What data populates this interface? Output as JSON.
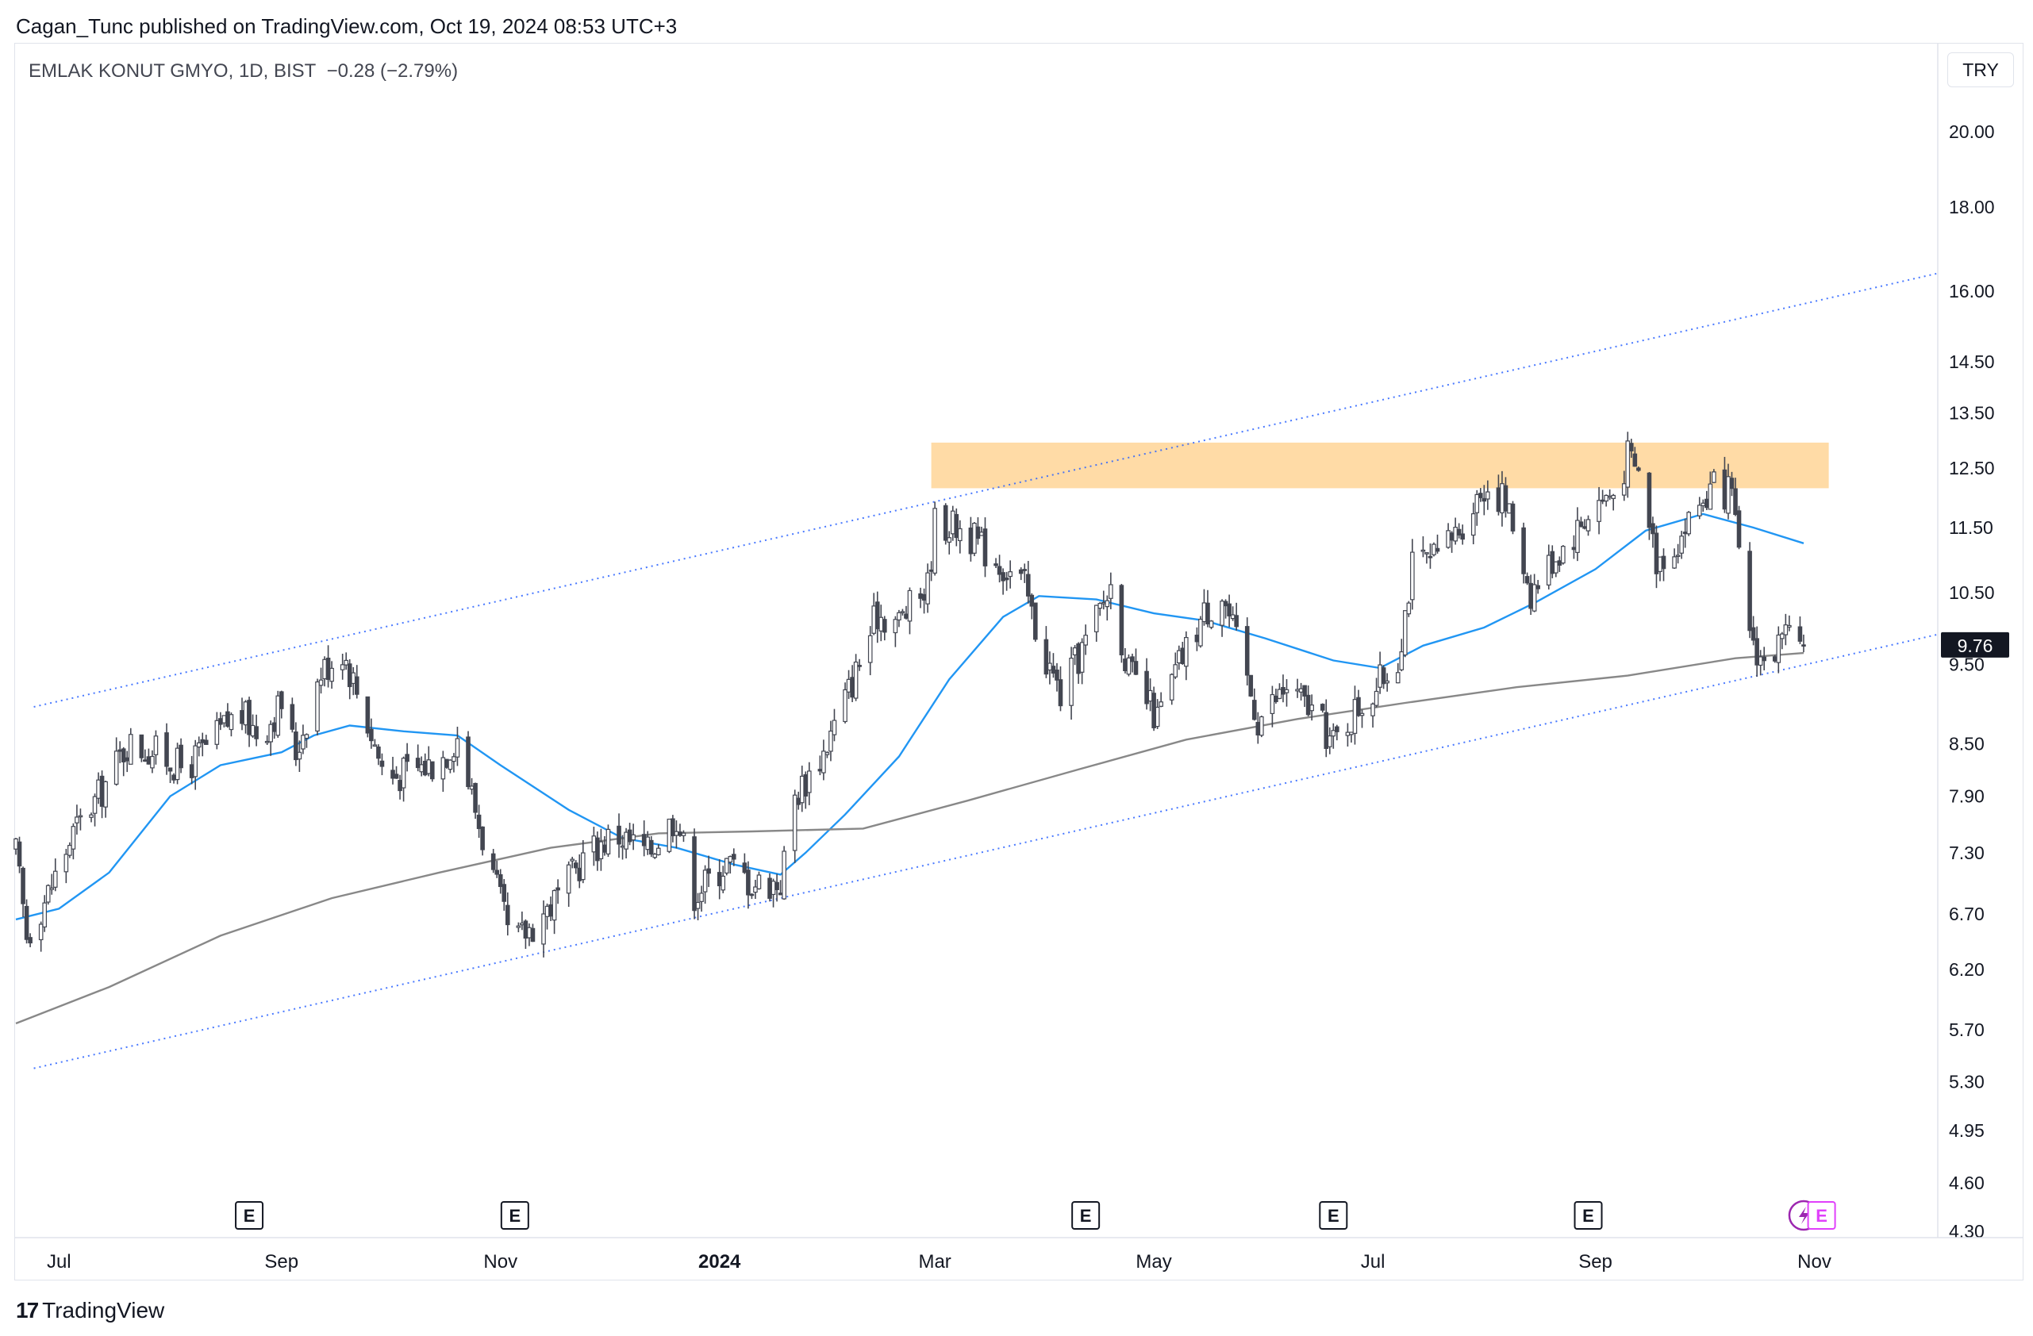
{
  "header": {
    "published": "Cagan_Tunc published on TradingView.com, Oct 19, 2024 08:53 UTC+3"
  },
  "symbol": {
    "title": "EMLAK KONUT GMYO, 1D, BIST",
    "change": "−0.28 (−2.79%)"
  },
  "currency": "TRY",
  "footer": {
    "brand": "TradingView",
    "mark": "17"
  },
  "colors": {
    "up": "#ffffff",
    "down": "#434651",
    "candle_outline": "#434651",
    "ma_fast": "#2196f3",
    "ma_slow": "#888888",
    "channel": "#2962ff",
    "zone": "#ffcc80",
    "last_price_bg": "#131722",
    "event_e": "#131722",
    "event_e_upcoming": "#e040fb",
    "dividend": "#9c27b0"
  },
  "chart_data": {
    "type": "candlestick",
    "scale": "log",
    "ylim": [
      4.3,
      22.5
    ],
    "y_ticks": [
      "20.00",
      "18.00",
      "16.00",
      "14.50",
      "13.50",
      "12.50",
      "11.50",
      "10.50",
      "9.50",
      "8.50",
      "7.90",
      "7.30",
      "6.70",
      "6.20",
      "5.70",
      "5.30",
      "4.95",
      "4.60",
      "4.30"
    ],
    "x_ticks": [
      {
        "label": "Jul",
        "date": "2023-07-01"
      },
      {
        "label": "Sep",
        "date": "2023-09-01"
      },
      {
        "label": "Nov",
        "date": "2023-11-01"
      },
      {
        "label": "2024",
        "date": "2024-01-01",
        "bold": true
      },
      {
        "label": "Mar",
        "date": "2024-03-01"
      },
      {
        "label": "May",
        "date": "2024-05-01"
      },
      {
        "label": "Jul",
        "date": "2024-07-01"
      },
      {
        "label": "Sep",
        "date": "2024-09-01"
      },
      {
        "label": "Nov",
        "date": "2024-11-01"
      }
    ],
    "last_price": "9.76",
    "close_path": [
      [
        "2023-06-19",
        7.3
      ],
      [
        "2023-06-22",
        6.5
      ],
      [
        "2023-06-28",
        6.9
      ],
      [
        "2023-07-05",
        7.5
      ],
      [
        "2023-07-12",
        7.9
      ],
      [
        "2023-07-20",
        8.5
      ],
      [
        "2023-07-28",
        8.4
      ],
      [
        "2023-08-05",
        8.2
      ],
      [
        "2023-08-12",
        8.5
      ],
      [
        "2023-08-20",
        8.9
      ],
      [
        "2023-08-26",
        8.6
      ],
      [
        "2023-09-01",
        9.0
      ],
      [
        "2023-09-05",
        8.4
      ],
      [
        "2023-09-12",
        9.4
      ],
      [
        "2023-09-18",
        9.7
      ],
      [
        "2023-09-24",
        8.9
      ],
      [
        "2023-09-30",
        8.1
      ],
      [
        "2023-10-08",
        8.2
      ],
      [
        "2023-10-15",
        8.3
      ],
      [
        "2023-10-20",
        8.6
      ],
      [
        "2023-10-26",
        7.6
      ],
      [
        "2023-11-01",
        6.8
      ],
      [
        "2023-11-04",
        6.4
      ],
      [
        "2023-11-10",
        6.6
      ],
      [
        "2023-11-18",
        6.9
      ],
      [
        "2023-11-25",
        7.3
      ],
      [
        "2023-12-03",
        7.5
      ],
      [
        "2023-12-12",
        7.3
      ],
      [
        "2023-12-20",
        7.7
      ],
      [
        "2023-12-25",
        6.9
      ],
      [
        "2024-01-03",
        7.2
      ],
      [
        "2024-01-10",
        7.0
      ],
      [
        "2024-01-18",
        7.0
      ],
      [
        "2024-01-22",
        7.9
      ],
      [
        "2024-01-30",
        8.4
      ],
      [
        "2024-02-08",
        9.4
      ],
      [
        "2024-02-14",
        10.2
      ],
      [
        "2024-02-20",
        10.1
      ],
      [
        "2024-02-28",
        10.6
      ],
      [
        "2024-03-01",
        11.6
      ],
      [
        "2024-03-08",
        11.5
      ],
      [
        "2024-03-14",
        11.2
      ],
      [
        "2024-03-20",
        10.9
      ],
      [
        "2024-03-26",
        10.6
      ],
      [
        "2024-03-30",
        9.8
      ],
      [
        "2024-04-05",
        9.1
      ],
      [
        "2024-04-13",
        9.9
      ],
      [
        "2024-04-19",
        10.6
      ],
      [
        "2024-04-24",
        9.4
      ],
      [
        "2024-05-02",
        8.8
      ],
      [
        "2024-05-08",
        9.5
      ],
      [
        "2024-05-15",
        10.2
      ],
      [
        "2024-05-20",
        10.5
      ],
      [
        "2024-05-24",
        9.8
      ],
      [
        "2024-05-30",
        8.8
      ],
      [
        "2024-06-07",
        9.2
      ],
      [
        "2024-06-14",
        8.9
      ],
      [
        "2024-06-20",
        8.5
      ],
      [
        "2024-06-26",
        8.9
      ],
      [
        "2024-07-02",
        9.2
      ],
      [
        "2024-07-08",
        9.6
      ],
      [
        "2024-07-12",
        10.9
      ],
      [
        "2024-07-19",
        11.0
      ],
      [
        "2024-07-25",
        11.5
      ],
      [
        "2024-08-01",
        12.2
      ],
      [
        "2024-08-06",
        12.0
      ],
      [
        "2024-08-10",
        11.4
      ],
      [
        "2024-08-14",
        10.5
      ],
      [
        "2024-08-20",
        11.0
      ],
      [
        "2024-08-26",
        11.4
      ],
      [
        "2024-09-01",
        11.9
      ],
      [
        "2024-09-07",
        12.1
      ],
      [
        "2024-09-10",
        12.7
      ],
      [
        "2024-09-14",
        12.3
      ],
      [
        "2024-09-18",
        11.0
      ],
      [
        "2024-09-24",
        11.3
      ],
      [
        "2024-09-30",
        11.9
      ],
      [
        "2024-10-05",
        12.2
      ],
      [
        "2024-10-09",
        12.0
      ],
      [
        "2024-10-12",
        10.5
      ],
      [
        "2024-10-15",
        9.8
      ],
      [
        "2024-10-18",
        9.5
      ],
      [
        "2024-10-23",
        9.8
      ],
      [
        "2024-10-29",
        9.76
      ]
    ],
    "series": [
      {
        "key": "ma_fast",
        "points": [
          [
            "2023-06-19",
            6.65
          ],
          [
            "2023-07-01",
            6.75
          ],
          [
            "2023-07-15",
            7.1
          ],
          [
            "2023-08-01",
            7.9
          ],
          [
            "2023-08-15",
            8.25
          ],
          [
            "2023-09-01",
            8.4
          ],
          [
            "2023-09-10",
            8.6
          ],
          [
            "2023-09-20",
            8.72
          ],
          [
            "2023-10-05",
            8.65
          ],
          [
            "2023-10-20",
            8.6
          ],
          [
            "2023-11-01",
            8.25
          ],
          [
            "2023-11-20",
            7.75
          ],
          [
            "2023-12-05",
            7.45
          ],
          [
            "2023-12-20",
            7.35
          ],
          [
            "2024-01-05",
            7.18
          ],
          [
            "2024-01-18",
            7.08
          ],
          [
            "2024-01-25",
            7.3
          ],
          [
            "2024-02-05",
            7.7
          ],
          [
            "2024-02-20",
            8.35
          ],
          [
            "2024-03-05",
            9.3
          ],
          [
            "2024-03-20",
            10.15
          ],
          [
            "2024-03-30",
            10.45
          ],
          [
            "2024-04-15",
            10.4
          ],
          [
            "2024-05-01",
            10.2
          ],
          [
            "2024-05-15",
            10.1
          ],
          [
            "2024-06-01",
            9.85
          ],
          [
            "2024-06-20",
            9.55
          ],
          [
            "2024-07-03",
            9.45
          ],
          [
            "2024-07-15",
            9.75
          ],
          [
            "2024-08-01",
            10.0
          ],
          [
            "2024-08-15",
            10.35
          ],
          [
            "2024-09-01",
            10.85
          ],
          [
            "2024-09-15",
            11.45
          ],
          [
            "2024-10-01",
            11.72
          ],
          [
            "2024-10-15",
            11.5
          ],
          [
            "2024-10-29",
            11.25
          ]
        ]
      },
      {
        "key": "ma_slow",
        "points": [
          [
            "2023-06-19",
            5.75
          ],
          [
            "2023-07-15",
            6.05
          ],
          [
            "2023-08-15",
            6.5
          ],
          [
            "2023-09-15",
            6.85
          ],
          [
            "2023-10-15",
            7.1
          ],
          [
            "2023-11-15",
            7.35
          ],
          [
            "2023-12-15",
            7.5
          ],
          [
            "2024-01-10",
            7.52
          ],
          [
            "2024-02-10",
            7.55
          ],
          [
            "2024-03-10",
            7.85
          ],
          [
            "2024-04-10",
            8.2
          ],
          [
            "2024-05-10",
            8.55
          ],
          [
            "2024-06-10",
            8.8
          ],
          [
            "2024-07-10",
            9.0
          ],
          [
            "2024-08-10",
            9.2
          ],
          [
            "2024-09-10",
            9.35
          ],
          [
            "2024-10-10",
            9.58
          ],
          [
            "2024-10-29",
            9.65
          ]
        ]
      },
      {
        "key": "channel_upper",
        "points": [
          [
            "2023-06-24",
            8.95
          ],
          [
            "2024-12-05",
            16.4
          ]
        ]
      },
      {
        "key": "channel_lower",
        "points": [
          [
            "2023-06-24",
            5.4
          ],
          [
            "2024-12-05",
            9.9
          ]
        ]
      }
    ],
    "resistance_zone": {
      "start": "2024-02-29",
      "end": "2024-11-05",
      "low": 12.15,
      "high": 12.95
    },
    "events": [
      {
        "date": "2023-08-23",
        "label": "E"
      },
      {
        "date": "2023-11-05",
        "label": "E"
      },
      {
        "date": "2024-04-12",
        "label": "E"
      },
      {
        "date": "2024-06-20",
        "label": "E"
      },
      {
        "date": "2024-08-30",
        "label": "E"
      },
      {
        "date": "2024-10-29",
        "type": "dividend",
        "icon": "lightning-icon"
      },
      {
        "date": "2024-11-03",
        "label": "E",
        "upcoming": true
      }
    ]
  }
}
